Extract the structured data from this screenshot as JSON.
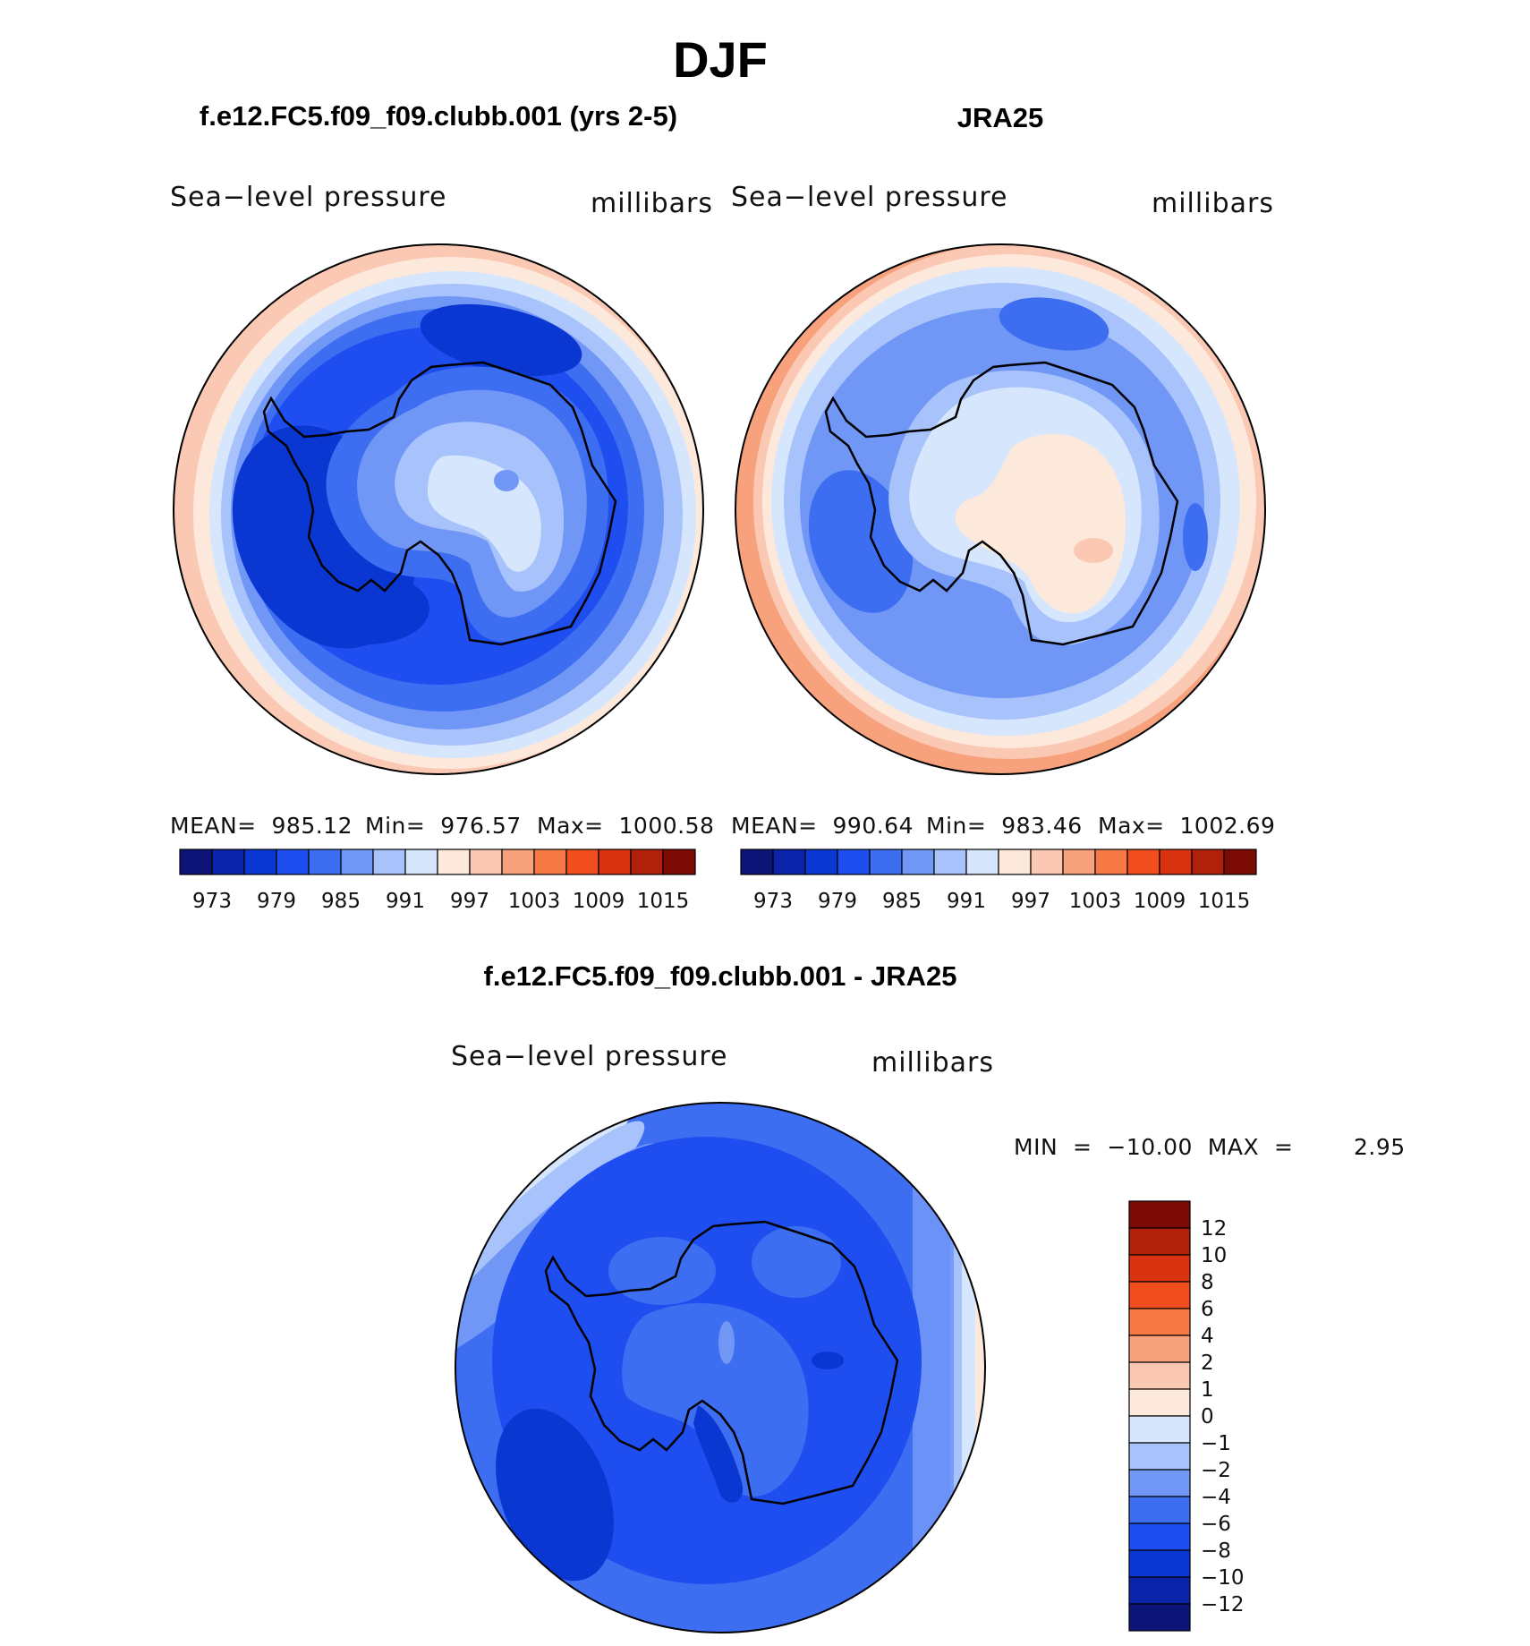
{
  "figure": {
    "title": "DJF"
  },
  "panels": [
    {
      "id": "model",
      "title": "f.e12.FC5.f09_f09.clubb.001 (yrs 2-5)",
      "left_label": "Sea−level pressure",
      "right_label": "millibars",
      "stats": {
        "mean": "MEAN=  985.12",
        "min": "Min=  976.57",
        "max": "Max=  1000.58"
      }
    },
    {
      "id": "obs",
      "title": "JRA25",
      "left_label": "Sea−level pressure",
      "right_label": "millibars",
      "stats": {
        "mean": "MEAN=  990.64",
        "min": "Min=  983.46",
        "max": "Max=  1002.69"
      }
    },
    {
      "id": "diff",
      "title": "f.e12.FC5.f09_f09.clubb.001 - JRA25",
      "left_label": "Sea−level pressure",
      "right_label": "millibars",
      "stats": {
        "minmax": "MIN  =  −10.00  MAX  =        2.95"
      }
    }
  ],
  "chart_data": [
    {
      "type": "heatmap",
      "projection": "south polar stereographic",
      "field": "Sea-level pressure",
      "units": "millibars",
      "mean": 985.12,
      "min": 976.57,
      "max": 1000.58,
      "contour_levels": [
        973,
        976,
        979,
        982,
        985,
        988,
        991,
        994,
        997,
        1000,
        1003,
        1006,
        1009,
        1012,
        1015
      ],
      "colorbar_ticks": [
        "973",
        "979",
        "985",
        "991",
        "997",
        "1003",
        "1009",
        "1015"
      ]
    },
    {
      "type": "heatmap",
      "projection": "south polar stereographic",
      "field": "Sea-level pressure",
      "units": "millibars",
      "mean": 990.64,
      "min": 983.46,
      "max": 1002.69,
      "contour_levels": [
        973,
        976,
        979,
        982,
        985,
        988,
        991,
        994,
        997,
        1000,
        1003,
        1006,
        1009,
        1012,
        1015
      ],
      "colorbar_ticks": [
        "973",
        "979",
        "985",
        "991",
        "997",
        "1003",
        "1009",
        "1015"
      ]
    },
    {
      "type": "heatmap",
      "projection": "south polar stereographic",
      "field": "Sea-level pressure difference",
      "units": "millibars",
      "min": -10.0,
      "max": 2.95,
      "contour_levels": [
        -12,
        -10,
        -8,
        -6,
        -4,
        -2,
        -1,
        0,
        1,
        2,
        4,
        6,
        8,
        10,
        12
      ],
      "colorbar_ticks": [
        "12",
        "10",
        "8",
        "6",
        "4",
        "2",
        "1",
        "0",
        "−1",
        "−2",
        "−4",
        "−6",
        "−8",
        "−10",
        "−12"
      ]
    }
  ],
  "palette": [
    "#0d1478",
    "#0a23a8",
    "#0a37d2",
    "#1e4ef0",
    "#3d6ef2",
    "#7096f6",
    "#a8c2fb",
    "#d6e6fd",
    "#fde8dc",
    "#fbc9b3",
    "#f8a27d",
    "#f77a46",
    "#f14e1d",
    "#d83210",
    "#b0200b",
    "#7d0b05"
  ]
}
